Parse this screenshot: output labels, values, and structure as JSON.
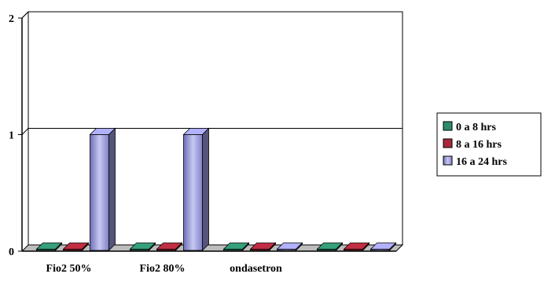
{
  "chart_data": {
    "type": "bar",
    "title": "",
    "xlabel": "",
    "ylabel": "",
    "categories": [
      "Fio2 50%",
      "Fio2 80%",
      "ondasetron",
      ""
    ],
    "series": [
      {
        "name": "0 a 8 hrs",
        "values": [
          0,
          0,
          0,
          0
        ],
        "color": "#2e8b6a"
      },
      {
        "name": "8 a 16 hrs",
        "values": [
          0,
          0,
          0,
          0
        ],
        "color": "#a8283a"
      },
      {
        "name": "16 a 24 hrs",
        "values": [
          1,
          1,
          0,
          0
        ],
        "color": "#9a9ae0"
      }
    ],
    "ylim": [
      0,
      2
    ],
    "yticks": [
      "0",
      "1",
      "2"
    ],
    "grid": true,
    "legend_position": "right",
    "style": "3d-bar"
  }
}
